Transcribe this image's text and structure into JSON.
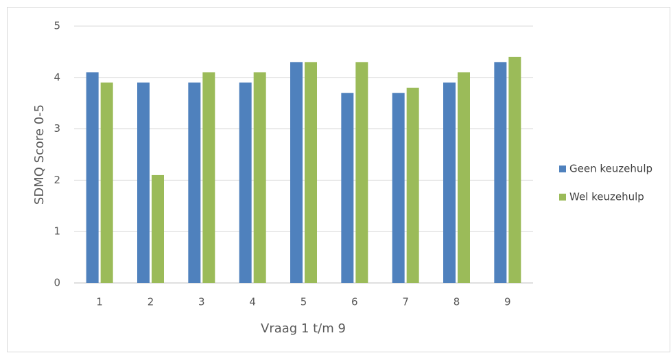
{
  "chart_data": {
    "type": "bar",
    "x_label": "Vraag 1 t/m 9",
    "y_label": "SDMQ Score 0-5",
    "categories": [
      "1",
      "2",
      "3",
      "4",
      "5",
      "6",
      "7",
      "8",
      "9"
    ],
    "series": [
      {
        "name": "Geen keuzehulp",
        "color": "#4f81bd",
        "values": [
          4.1,
          3.9,
          3.9,
          3.9,
          4.3,
          3.7,
          3.7,
          3.9,
          4.3
        ]
      },
      {
        "name": "Wel keuzehulp",
        "color": "#9bbb59",
        "values": [
          3.9,
          2.1,
          4.1,
          4.1,
          4.3,
          4.3,
          3.8,
          4.1,
          4.4
        ]
      }
    ],
    "ylim": [
      0,
      5
    ],
    "yticks": [
      0,
      1,
      2,
      3,
      4,
      5
    ],
    "grid": true,
    "legend": "right"
  }
}
